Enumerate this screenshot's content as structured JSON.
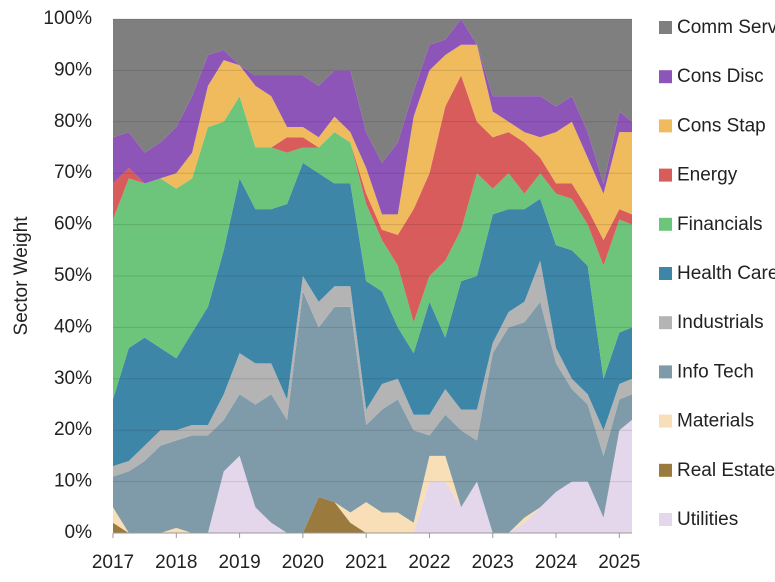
{
  "chart_data": {
    "type": "stacked-area",
    "y_label": "Sector Weight",
    "x": [
      2017,
      2017.25,
      2017.5,
      2017.75,
      2018,
      2018.25,
      2018.5,
      2018.75,
      2019,
      2019.25,
      2019.5,
      2019.75,
      2020,
      2020.25,
      2020.5,
      2020.75,
      2021,
      2021.25,
      2021.5,
      2021.75,
      2022,
      2022.25,
      2022.5,
      2022.75,
      2023,
      2023.25,
      2023.5,
      2023.75,
      2024,
      2024.25,
      2024.5,
      2024.75,
      2025,
      2025.2
    ],
    "xlim": [
      2017,
      2025.2
    ],
    "xticks": [
      2017,
      2018,
      2019,
      2020,
      2021,
      2022,
      2023,
      2024,
      2025
    ],
    "ylim": [
      0,
      100
    ],
    "yticks": [
      {
        "value": 0,
        "label": "0%"
      },
      {
        "value": 10,
        "label": "10%"
      },
      {
        "value": 20,
        "label": "20%"
      },
      {
        "value": 30,
        "label": "30%"
      },
      {
        "value": 40,
        "label": "40%"
      },
      {
        "value": 50,
        "label": "50%"
      },
      {
        "value": 60,
        "label": "60%"
      },
      {
        "value": 70,
        "label": "70%"
      },
      {
        "value": 80,
        "label": "80%"
      },
      {
        "value": 90,
        "label": "90%"
      },
      {
        "value": 100,
        "label": "100%"
      }
    ],
    "grid": true,
    "series": [
      {
        "name": "Comm Serv",
        "color": "#7f7f7f",
        "values": [
          23,
          22,
          26,
          24,
          21,
          15,
          7,
          6,
          9,
          11,
          11,
          11,
          11,
          13,
          10,
          10,
          22,
          28,
          24,
          14,
          5,
          4,
          0,
          5,
          15,
          15,
          15,
          15,
          17,
          15,
          22,
          32,
          18,
          20
        ]
      },
      {
        "name": "Cons Disc",
        "color": "#8e55b8",
        "values": [
          9,
          7,
          6,
          7,
          9,
          11,
          6,
          2,
          0,
          2,
          4,
          10,
          10,
          10,
          9,
          12,
          7,
          10,
          14,
          5,
          5,
          3,
          5,
          0,
          3,
          5,
          7,
          8,
          5,
          5,
          5,
          2,
          4,
          2
        ]
      },
      {
        "name": "Cons Stap",
        "color": "#efbb5c",
        "values": [
          0,
          0,
          0,
          0,
          3,
          5,
          8,
          12,
          6,
          12,
          10,
          2,
          2,
          2,
          3,
          2,
          5,
          3,
          4,
          18,
          20,
          10,
          6,
          15,
          5,
          2,
          2,
          4,
          10,
          12,
          10,
          9,
          15,
          16
        ]
      },
      {
        "name": "Energy",
        "color": "#d95c5c",
        "values": [
          7,
          2,
          0,
          0,
          0,
          0,
          0,
          0,
          0,
          0,
          0,
          3,
          2,
          0,
          0,
          0,
          2,
          2,
          6,
          22,
          20,
          30,
          30,
          10,
          10,
          8,
          10,
          3,
          2,
          3,
          3,
          5,
          2,
          2
        ]
      },
      {
        "name": "Financials",
        "color": "#6cc57a",
        "values": [
          35,
          33,
          30,
          33,
          33,
          30,
          35,
          25,
          16,
          12,
          12,
          10,
          3,
          5,
          10,
          8,
          15,
          10,
          12,
          6,
          5,
          15,
          10,
          20,
          5,
          7,
          3,
          5,
          10,
          10,
          8,
          22,
          22,
          20
        ]
      },
      {
        "name": "Health Care",
        "color": "#3e86a7",
        "values": [
          13,
          22,
          21,
          16,
          14,
          18,
          23,
          28,
          34,
          30,
          30,
          38,
          22,
          25,
          20,
          20,
          25,
          18,
          10,
          12,
          22,
          10,
          25,
          26,
          25,
          20,
          18,
          12,
          20,
          25,
          25,
          10,
          10,
          10
        ]
      },
      {
        "name": "Industrials",
        "color": "#b4b4b4",
        "values": [
          2,
          2,
          3,
          3,
          2,
          2,
          2,
          5,
          8,
          8,
          6,
          4,
          3,
          5,
          4,
          4,
          3,
          5,
          4,
          3,
          4,
          5,
          4,
          6,
          2,
          3,
          4,
          8,
          3,
          2,
          2,
          5,
          3,
          3
        ]
      },
      {
        "name": "Info Tech",
        "color": "#7f9ba9",
        "values": [
          6,
          12,
          14,
          17,
          17,
          19,
          19,
          10,
          12,
          20,
          25,
          22,
          47,
          33,
          38,
          40,
          15,
          20,
          22,
          18,
          4,
          8,
          15,
          8,
          35,
          40,
          38,
          40,
          25,
          18,
          15,
          12,
          6,
          5
        ]
      },
      {
        "name": "Materials",
        "color": "#f8dfb7",
        "values": [
          3,
          0,
          0,
          0,
          1,
          0,
          0,
          0,
          0,
          0,
          0,
          0,
          0,
          0,
          0,
          2,
          6,
          4,
          4,
          2,
          5,
          5,
          0,
          0,
          0,
          0,
          1,
          0,
          0,
          0,
          0,
          0,
          0,
          0
        ]
      },
      {
        "name": "Real Estate",
        "color": "#9b7a3d",
        "values": [
          2,
          0,
          0,
          0,
          0,
          0,
          0,
          0,
          0,
          0,
          0,
          0,
          0,
          7,
          6,
          2,
          0,
          0,
          0,
          0,
          0,
          0,
          0,
          0,
          0,
          0,
          0,
          0,
          0,
          0,
          0,
          0,
          0,
          0
        ]
      },
      {
        "name": "Utilities",
        "color": "#e4d7eb",
        "values": [
          0,
          0,
          0,
          0,
          0,
          0,
          0,
          12,
          15,
          5,
          2,
          0,
          0,
          0,
          0,
          0,
          0,
          0,
          0,
          0,
          10,
          10,
          5,
          10,
          0,
          0,
          2,
          5,
          8,
          10,
          10,
          3,
          20,
          22
        ]
      }
    ]
  }
}
